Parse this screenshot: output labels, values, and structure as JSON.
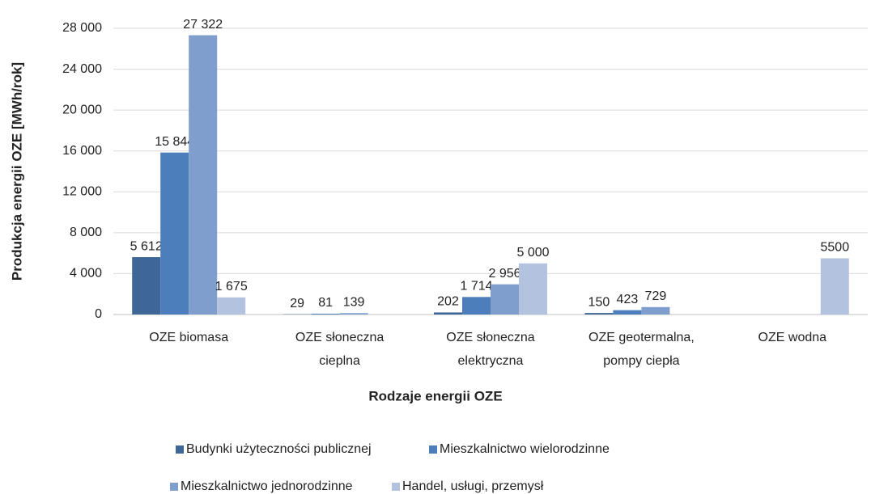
{
  "chart_data": {
    "type": "bar",
    "ylabel": "Produkcja energii OZE [MWh/rok]",
    "xlabel": "Rodzaje energii OZE",
    "categories": [
      [
        "OZE biomasa"
      ],
      [
        "OZE słoneczna",
        "cieplna"
      ],
      [
        "OZE słoneczna",
        "elektryczna"
      ],
      [
        "OZE geotermalna,",
        "pompy ciepła"
      ],
      [
        "OZE wodna"
      ]
    ],
    "series": [
      {
        "name": "Budynki użyteczności publicznej",
        "color": "#3e6696",
        "values": [
          5612,
          29,
          202,
          150,
          null
        ],
        "value_labels": [
          "5 612",
          "29",
          "202",
          "150",
          null
        ]
      },
      {
        "name": "Mieszkalnictwo wielorodzinne",
        "color": "#4d7ebc",
        "values": [
          15844,
          81,
          1714,
          423,
          null
        ],
        "value_labels": [
          "15 844",
          "81",
          "1 714",
          "423",
          null
        ]
      },
      {
        "name": "Mieszkalnictwo jednorodzinne",
        "color": "#7f9ecd",
        "values": [
          27322,
          139,
          2956,
          729,
          null
        ],
        "value_labels": [
          "27 322",
          "139",
          "2 956",
          "729",
          null
        ]
      },
      {
        "name": "Handel, usługi, przemysł",
        "color": "#b3c3df",
        "values": [
          1675,
          null,
          5000,
          null,
          5500
        ],
        "value_labels": [
          "1 675",
          null,
          "5 000",
          null,
          "5500"
        ]
      }
    ],
    "ylim": [
      0,
      28000
    ],
    "yticks": [
      0,
      {
        "value": 4000,
        "label": "4 000"
      },
      {
        "value": 8000,
        "label": "8 000"
      },
      {
        "value": 12000,
        "label": "12 000"
      },
      {
        "value": 16000,
        "label": "16 000"
      },
      {
        "value": 20000,
        "label": "20 000"
      },
      {
        "value": 24000,
        "label": "24 000"
      },
      {
        "value": 28000,
        "label": "28 000"
      }
    ],
    "grid": true
  }
}
